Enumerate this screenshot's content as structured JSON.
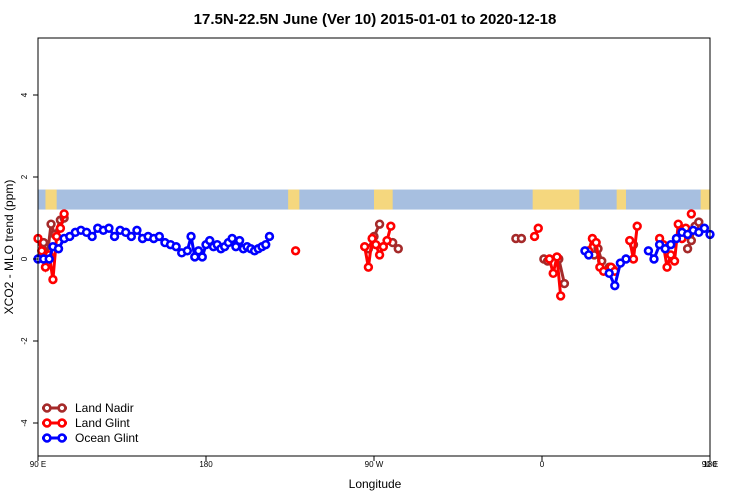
{
  "chart_data": {
    "type": "line",
    "title": "17.5N-22.5N June (Ver 10)   2015-01-01 to 2020-12-18",
    "xlabel": "Longitude",
    "ylabel": "XCO2 - MLO trend (ppm)",
    "xlim": [
      90,
      450
    ],
    "ylim": [
      -5,
      5.3
    ],
    "x_ticks": [
      {
        "value": 90,
        "label": "90 E"
      },
      {
        "value": 180,
        "label": "180"
      },
      {
        "value": 270,
        "label": "90 W"
      },
      {
        "value": 360,
        "label": "0"
      },
      {
        "value": 450,
        "label": "90 E"
      },
      {
        "value": 540,
        "label": "180"
      }
    ],
    "y_ticks": [
      {
        "value": -4,
        "label": "-4"
      },
      {
        "value": -2,
        "label": "-2"
      },
      {
        "value": 0,
        "label": "0"
      },
      {
        "value": 2,
        "label": "2"
      },
      {
        "value": 4,
        "label": "4"
      }
    ],
    "colors": {
      "land_nadir": "#a52a2a",
      "land_glint": "#ff0000",
      "ocean_glint": "#0000ff",
      "band_ocean": "#a7bfe0",
      "band_land": "#f5d77e"
    },
    "series": [
      {
        "name": "Land Nadir",
        "color": "#a52a2a",
        "segments": [
          [
            [
              93,
              0.4
            ],
            [
              95,
              0.1
            ],
            [
              97,
              0.85
            ],
            [
              99,
              0.6
            ],
            [
              102,
              0.95
            ],
            [
              104,
              1.0
            ]
          ],
          [
            [
              267,
              0.25
            ],
            [
              270,
              0.55
            ],
            [
              273,
              0.85
            ]
          ],
          [
            [
              280,
              0.4
            ],
            [
              283,
              0.25
            ]
          ],
          [
            [
              346,
              0.5
            ],
            [
              349,
              0.5
            ]
          ],
          [
            [
              361,
              0.0
            ],
            [
              363,
              -0.05
            ]
          ],
          [
            [
              369,
              0.0
            ],
            [
              372,
              -0.6
            ]
          ],
          [
            [
              388,
              0.1
            ],
            [
              390,
              0.25
            ],
            [
              392,
              -0.05
            ]
          ],
          [
            [
              396,
              -0.2
            ],
            [
              398,
              -0.25
            ]
          ],
          [
            [
              409,
              0.35
            ]
          ],
          [
            [
              438,
              0.25
            ],
            [
              440,
              0.45
            ],
            [
              442,
              0.8
            ],
            [
              444,
              0.9
            ]
          ]
        ]
      },
      {
        "name": "Land Glint",
        "color": "#ff0000",
        "segments": [
          [
            [
              90,
              0.5
            ],
            [
              92,
              0.2
            ],
            [
              94,
              -0.2
            ],
            [
              96,
              0.1
            ],
            [
              98,
              -0.5
            ],
            [
              100,
              0.55
            ],
            [
              102,
              0.75
            ],
            [
              104,
              1.1
            ]
          ],
          [
            [
              265,
              0.3
            ],
            [
              267,
              -0.2
            ],
            [
              269,
              0.5
            ],
            [
              271,
              0.35
            ],
            [
              273,
              0.1
            ],
            [
              275,
              0.3
            ]
          ],
          [
            [
              277,
              0.45
            ],
            [
              279,
              0.8
            ]
          ],
          [
            [
              356,
              0.55
            ],
            [
              358,
              0.75
            ]
          ],
          [
            [
              364,
              0.0
            ],
            [
              366,
              -0.35
            ],
            [
              368,
              0.05
            ],
            [
              370,
              -0.9
            ]
          ],
          [
            [
              385,
              0.2
            ],
            [
              387,
              0.5
            ],
            [
              389,
              0.4
            ],
            [
              391,
              -0.2
            ],
            [
              393,
              -0.3
            ]
          ],
          [
            [
              397,
              -0.2
            ],
            [
              399,
              -0.3
            ]
          ],
          [
            [
              407,
              0.45
            ],
            [
              409,
              0.0
            ],
            [
              411,
              0.8
            ]
          ],
          [
            [
              423,
              0.5
            ],
            [
              425,
              0.35
            ],
            [
              427,
              -0.2
            ],
            [
              429,
              0.1
            ],
            [
              431,
              -0.05
            ],
            [
              433,
              0.85
            ],
            [
              435,
              0.5
            ],
            [
              437,
              0.75
            ]
          ],
          [
            [
              228,
              0.2
            ]
          ],
          [
            [
              440,
              1.1
            ]
          ]
        ]
      },
      {
        "name": "Ocean Glint",
        "color": "#0000ff",
        "segments": [
          [
            [
              90,
              0.0
            ],
            [
              93,
              0.0
            ],
            [
              96,
              0.0
            ],
            [
              98,
              0.3
            ],
            [
              101,
              0.25
            ],
            [
              104,
              0.5
            ],
            [
              107,
              0.55
            ],
            [
              110,
              0.65
            ],
            [
              113,
              0.7
            ],
            [
              116,
              0.65
            ],
            [
              119,
              0.55
            ],
            [
              122,
              0.75
            ],
            [
              125,
              0.7
            ],
            [
              128,
              0.75
            ],
            [
              131,
              0.55
            ],
            [
              134,
              0.7
            ],
            [
              137,
              0.65
            ],
            [
              140,
              0.55
            ],
            [
              143,
              0.7
            ],
            [
              146,
              0.5
            ],
            [
              149,
              0.55
            ],
            [
              152,
              0.5
            ],
            [
              155,
              0.55
            ],
            [
              158,
              0.4
            ],
            [
              161,
              0.35
            ],
            [
              164,
              0.3
            ],
            [
              167,
              0.15
            ],
            [
              170,
              0.2
            ],
            [
              172,
              0.55
            ],
            [
              174,
              0.05
            ],
            [
              176,
              0.2
            ],
            [
              178,
              0.05
            ],
            [
              180,
              0.35
            ],
            [
              182,
              0.45
            ],
            [
              184,
              0.3
            ],
            [
              186,
              0.35
            ],
            [
              188,
              0.25
            ],
            [
              190,
              0.3
            ],
            [
              192,
              0.4
            ],
            [
              194,
              0.5
            ],
            [
              196,
              0.3
            ],
            [
              198,
              0.45
            ],
            [
              200,
              0.25
            ],
            [
              202,
              0.3
            ],
            [
              204,
              0.25
            ],
            [
              206,
              0.2
            ],
            [
              208,
              0.25
            ],
            [
              210,
              0.3
            ],
            [
              212,
              0.35
            ],
            [
              214,
              0.55
            ]
          ],
          [
            [
              383,
              0.2
            ],
            [
              385,
              0.1
            ]
          ],
          [
            [
              396,
              -0.35
            ],
            [
              399,
              -0.65
            ],
            [
              402,
              -0.1
            ],
            [
              405,
              0.0
            ]
          ],
          [
            [
              417,
              0.2
            ],
            [
              420,
              0.0
            ],
            [
              423,
              0.35
            ],
            [
              426,
              0.25
            ],
            [
              429,
              0.35
            ],
            [
              432,
              0.5
            ],
            [
              435,
              0.65
            ],
            [
              438,
              0.6
            ],
            [
              441,
              0.7
            ],
            [
              444,
              0.65
            ],
            [
              447,
              0.75
            ],
            [
              450,
              0.6
            ]
          ]
        ]
      }
    ],
    "legend": {
      "position": "bottom-left",
      "entries": [
        "Land Nadir",
        "Land Glint",
        "Ocean Glint"
      ]
    },
    "band": {
      "y_center": 1.45,
      "land_x_ranges": [
        [
          94,
          100
        ],
        [
          224,
          230
        ],
        [
          270,
          280
        ],
        [
          355,
          380
        ],
        [
          400,
          405
        ],
        [
          445,
          450
        ]
      ]
    }
  }
}
